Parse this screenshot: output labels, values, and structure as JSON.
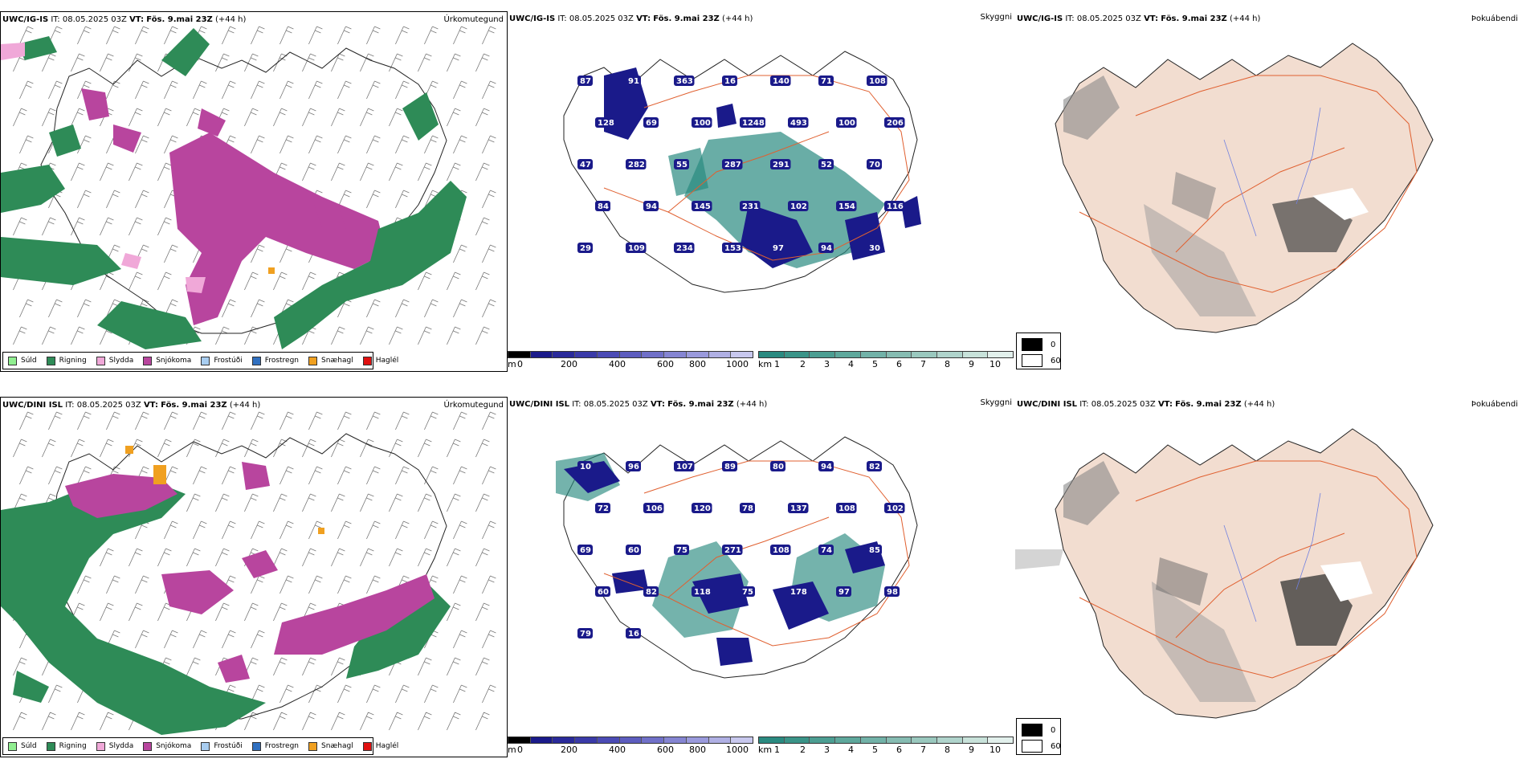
{
  "colors": {
    "drizzle": "#90ee90",
    "rain": "#2e8b57",
    "sleet": "#f0a8d8",
    "snow": "#b8459e",
    "freezing_drizzle": "#a8cdf0",
    "freezing_rain": "#3070c0",
    "snow_pellets": "#f0a020",
    "hail": "#e01010",
    "land": "#f2ddd0",
    "roads": "#e06030",
    "rivers": "#7080e0",
    "low_cloud": "#1a1a8a",
    "cloud_base": "#2a8a80"
  },
  "precip_legend": [
    {
      "label": "Súld",
      "color_key": "drizzle"
    },
    {
      "label": "Rigning",
      "color_key": "rain"
    },
    {
      "label": "Slydda",
      "color_key": "sleet"
    },
    {
      "label": "Snjókoma",
      "color_key": "snow"
    },
    {
      "label": "Frostúði",
      "color_key": "freezing_drizzle"
    },
    {
      "label": "Frostregn",
      "color_key": "freezing_rain"
    },
    {
      "label": "Snæhagl",
      "color_key": "snow_pellets"
    },
    {
      "label": "Haglél",
      "color_key": "hail"
    }
  ],
  "rows": [
    {
      "model": "UWC/IG-IS",
      "it_label": "IT:",
      "it_value": "08.05.2025 03Z",
      "vt_label": "VT:",
      "vt_value": "Fös. 9.mai 23Z",
      "lead": "(+44 h)",
      "cloud_labels": [
        "87",
        "91",
        "363",
        "16",
        "140",
        "71",
        "108",
        "128",
        "69",
        "100",
        "1248",
        "493",
        "100",
        "206",
        "47",
        "282",
        "55",
        "287",
        "291",
        "52",
        "70",
        "84",
        "94",
        "145",
        "231",
        "102",
        "154",
        "116",
        "29",
        "109",
        "234",
        "153",
        "97",
        "94",
        "30"
      ]
    },
    {
      "model": "UWC/DINI ISL",
      "it_label": "IT:",
      "it_value": "08.05.2025 03Z",
      "vt_label": "VT:",
      "vt_value": "Fös. 9.mai 23Z",
      "lead": "(+44 h)",
      "cloud_labels": [
        "10",
        "96",
        "107",
        "89",
        "80",
        "94",
        "82",
        "72",
        "106",
        "120",
        "78",
        "137",
        "108",
        "102",
        "69",
        "60",
        "75",
        "271",
        "108",
        "74",
        "85",
        "60",
        "82",
        "118",
        "75",
        "178",
        "97",
        "98",
        "79",
        "16"
      ]
    }
  ],
  "panel_titles": {
    "precip_type": "Úrkomutegund",
    "ceiling": "Skyggni",
    "fog": "Þokuábendi"
  },
  "height_bar": {
    "unit": "m",
    "ticks": [
      "0",
      "200",
      "400",
      "600",
      "800",
      "1000"
    ]
  },
  "visibility_bar": {
    "unit": "km",
    "ticks": [
      "1",
      "2",
      "3",
      "4",
      "5",
      "6",
      "7",
      "8",
      "9",
      "10"
    ]
  },
  "fog_legend": {
    "dark_label": "0",
    "light_label": "60"
  }
}
